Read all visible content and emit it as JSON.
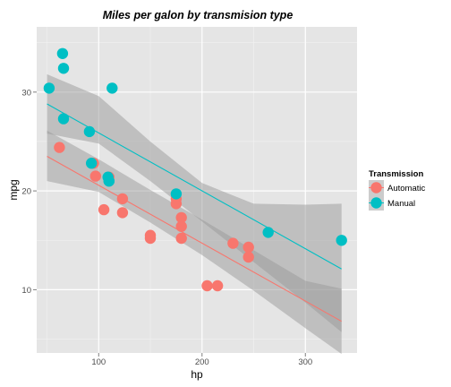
{
  "chart_data": {
    "type": "scatter",
    "title": "Miles per galon by transmision type",
    "xlabel": "hp",
    "ylabel": "mpg",
    "xlim": [
      40,
      350
    ],
    "ylim": [
      3.6,
      36.6
    ],
    "xticks": [
      100,
      200,
      300
    ],
    "yticks": [
      10,
      20,
      30
    ],
    "grid": true,
    "legend": {
      "title": "Transmission",
      "position": "right"
    },
    "series": [
      {
        "name": "Automatic",
        "color": "#F8766D",
        "points": [
          [
            62,
            24.4
          ],
          [
            95,
            22.8
          ],
          [
            97,
            21.5
          ],
          [
            105,
            18.1
          ],
          [
            110,
            21.4
          ],
          [
            123,
            19.2
          ],
          [
            123,
            17.8
          ],
          [
            150,
            15.5
          ],
          [
            150,
            15.2
          ],
          [
            175,
            18.7
          ],
          [
            175,
            19.2
          ],
          [
            180,
            17.3
          ],
          [
            180,
            16.4
          ],
          [
            180,
            15.2
          ],
          [
            205,
            10.4
          ],
          [
            215,
            10.4
          ],
          [
            230,
            14.7
          ],
          [
            245,
            14.3
          ],
          [
            245,
            13.3
          ]
        ],
        "fit": {
          "x": [
            50,
            335
          ],
          "y": [
            23.5,
            6.8
          ]
        },
        "band": {
          "x": [
            50,
            100,
            150,
            200,
            250,
            300,
            335
          ],
          "lo": [
            21.0,
            19.9,
            16.8,
            13.5,
            9.9,
            6.1,
            3.5
          ],
          "hi": [
            26.1,
            23.2,
            20.1,
            17.1,
            14.0,
            10.9,
            10.1
          ]
        }
      },
      {
        "name": "Manual",
        "color": "#00BFC4",
        "points": [
          [
            52,
            30.4
          ],
          [
            65,
            33.9
          ],
          [
            66,
            32.4
          ],
          [
            66,
            27.3
          ],
          [
            91,
            26.0
          ],
          [
            93,
            22.8
          ],
          [
            109,
            21.4
          ],
          [
            110,
            21.0
          ],
          [
            110,
            21.0
          ],
          [
            113,
            30.4
          ],
          [
            175,
            19.7
          ],
          [
            264,
            15.8
          ],
          [
            335,
            15.0
          ]
        ],
        "fit": {
          "x": [
            50,
            335
          ],
          "y": [
            28.8,
            12.1
          ]
        },
        "band": {
          "x": [
            50,
            100,
            150,
            200,
            250,
            300,
            335
          ],
          "lo": [
            25.8,
            24.8,
            21.0,
            16.9,
            12.8,
            8.7,
            5.7
          ],
          "hi": [
            31.8,
            29.6,
            25.0,
            20.8,
            18.7,
            18.6,
            18.7
          ]
        }
      }
    ]
  }
}
